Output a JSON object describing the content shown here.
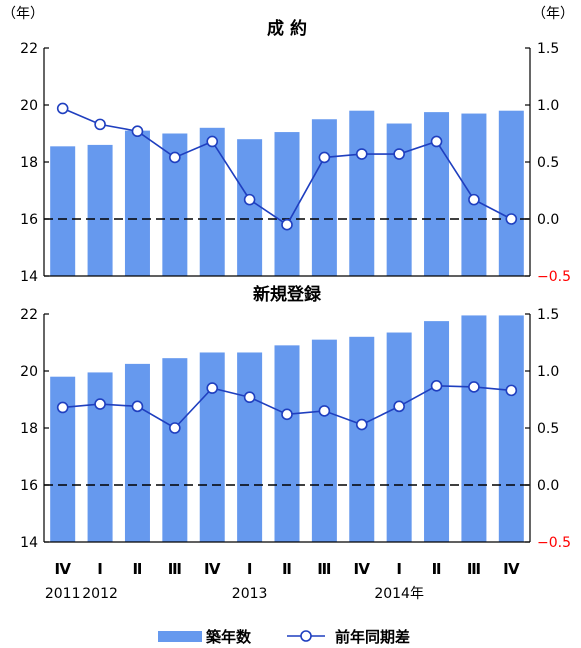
{
  "left_unit": "（年）",
  "right_unit": "（年）",
  "x_labels": {
    "quarters": [
      "Ⅳ",
      "Ⅰ",
      "Ⅱ",
      "Ⅲ",
      "Ⅳ",
      "Ⅰ",
      "Ⅱ",
      "Ⅲ",
      "Ⅳ",
      "Ⅰ",
      "Ⅱ",
      "Ⅲ",
      "Ⅳ"
    ],
    "years": [
      {
        "text": "2011",
        "index": 0
      },
      {
        "text": "2012",
        "index": 1
      },
      {
        "text": "2013",
        "index": 5
      },
      {
        "text": "2014年",
        "index": 9
      }
    ]
  },
  "legend": {
    "bar": "築年数",
    "line": "前年同期差"
  },
  "colors": {
    "bar": "#6699ee",
    "line": "#1f3fbf",
    "marker_fill": "#ffffff",
    "dash": "#000000",
    "negative_tick": "#ff0000"
  },
  "chart_data": [
    {
      "type": "bar",
      "title": "成 約",
      "categories": [
        "2011 Ⅳ",
        "2012 Ⅰ",
        "2012 Ⅱ",
        "2012 Ⅲ",
        "2012 Ⅳ",
        "2013 Ⅰ",
        "2013 Ⅱ",
        "2013 Ⅲ",
        "2013 Ⅳ",
        "2014 Ⅰ",
        "2014 Ⅱ",
        "2014 Ⅲ",
        "2014 Ⅳ"
      ],
      "series": [
        {
          "name": "築年数",
          "type": "bar",
          "axis": "left",
          "values": [
            18.55,
            18.6,
            19.1,
            19.0,
            19.2,
            18.8,
            19.05,
            19.5,
            19.8,
            19.35,
            19.75,
            19.7,
            19.8
          ]
        },
        {
          "name": "前年同期差",
          "type": "line",
          "axis": "right",
          "values": [
            0.97,
            0.83,
            0.77,
            0.54,
            0.68,
            0.17,
            -0.05,
            0.54,
            0.57,
            0.57,
            0.68,
            0.17,
            0.0
          ]
        }
      ],
      "left_ylim": [
        14,
        22
      ],
      "left_ticks": [
        "14",
        "16",
        "18",
        "20",
        "22"
      ],
      "right_ylim": [
        -0.5,
        1.5
      ],
      "right_ticks": [
        "−0.5",
        "0.0",
        "0.5",
        "1.0",
        "1.5"
      ],
      "reference_line": {
        "axis": "right",
        "value": 0.0,
        "style": "dashed"
      }
    },
    {
      "type": "bar",
      "title": "新規登録",
      "categories": [
        "2011 Ⅳ",
        "2012 Ⅰ",
        "2012 Ⅱ",
        "2012 Ⅲ",
        "2012 Ⅳ",
        "2013 Ⅰ",
        "2013 Ⅱ",
        "2013 Ⅲ",
        "2013 Ⅳ",
        "2014 Ⅰ",
        "2014 Ⅱ",
        "2014 Ⅲ",
        "2014 Ⅳ"
      ],
      "series": [
        {
          "name": "築年数",
          "type": "bar",
          "axis": "left",
          "values": [
            19.8,
            19.95,
            20.25,
            20.45,
            20.65,
            20.65,
            20.9,
            21.1,
            21.2,
            21.35,
            21.75,
            21.95,
            21.95
          ]
        },
        {
          "name": "前年同期差",
          "type": "line",
          "axis": "right",
          "values": [
            0.68,
            0.71,
            0.69,
            0.5,
            0.85,
            0.77,
            0.62,
            0.65,
            0.53,
            0.69,
            0.87,
            0.86,
            0.83
          ]
        }
      ],
      "left_ylim": [
        14,
        22
      ],
      "left_ticks": [
        "14",
        "16",
        "18",
        "20",
        "22"
      ],
      "right_ylim": [
        -0.5,
        1.5
      ],
      "right_ticks": [
        "−0.5",
        "0.0",
        "0.5",
        "1.0",
        "1.5"
      ],
      "reference_line": {
        "axis": "right",
        "value": 0.0,
        "style": "dashed"
      }
    }
  ]
}
